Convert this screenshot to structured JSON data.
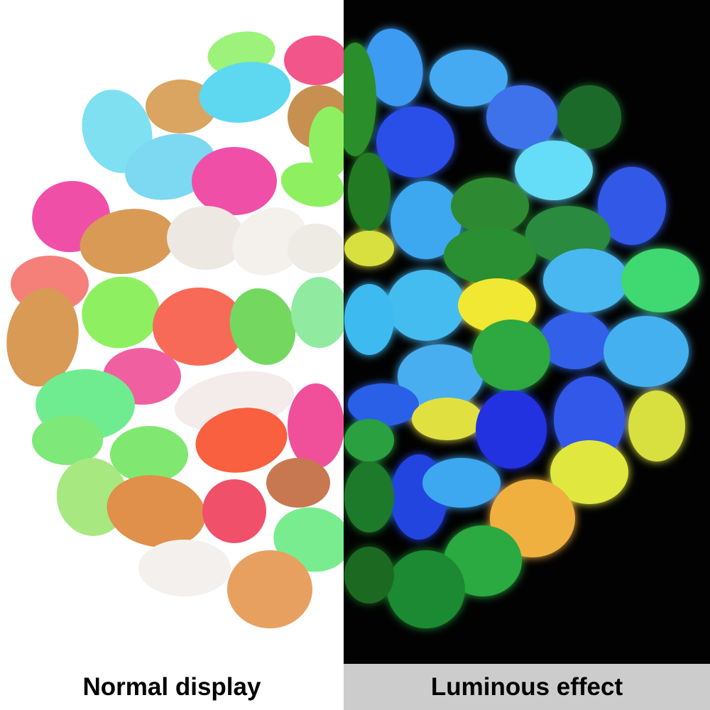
{
  "captions": {
    "normal": "Normal display",
    "luminous": "Luminous effect"
  }
}
